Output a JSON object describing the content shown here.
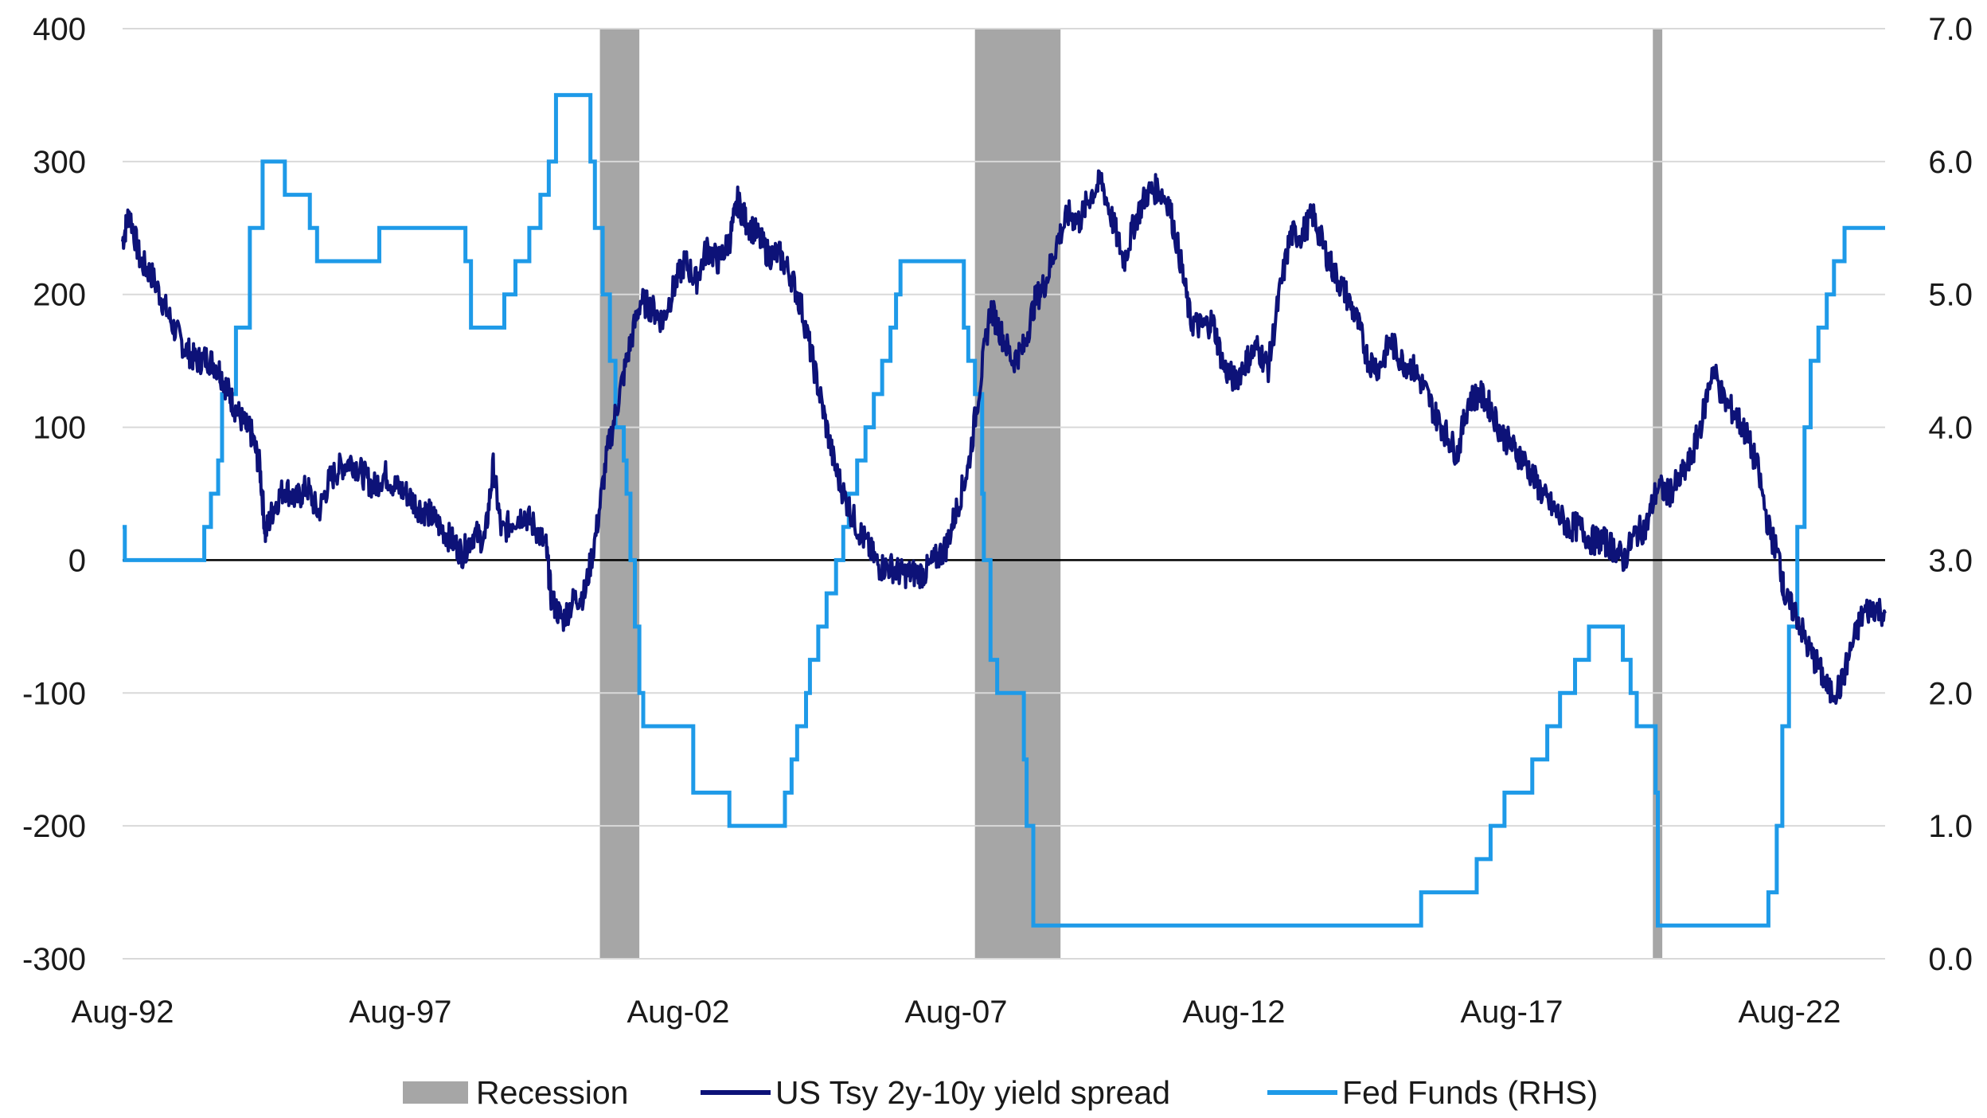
{
  "colors": {
    "recession": "#a6a6a6",
    "spread": "#0d1278",
    "fedfunds": "#1e9ae8",
    "grid": "#d9d9d9",
    "zero_line": "#000000"
  },
  "legend": {
    "recession": "Recession",
    "spread": "US Tsy 2y-10y yield spread",
    "fedfunds": "Fed Funds (RHS)"
  },
  "chart_data": {
    "type": "line",
    "grid": "horizontal",
    "legend_position": "bottom",
    "x_range": [
      "1992-08",
      "2024-04"
    ],
    "x_tick_labels": [
      {
        "label": "Aug-92",
        "date": 1992.58
      },
      {
        "label": "Aug-97",
        "date": 1997.58
      },
      {
        "label": "Aug-02",
        "date": 2002.58
      },
      {
        "label": "Aug-07",
        "date": 2007.58
      },
      {
        "label": "Aug-12",
        "date": 2012.58
      },
      {
        "label": "Aug-17",
        "date": 2017.58
      },
      {
        "label": "Aug-22",
        "date": 2022.58
      }
    ],
    "y_left": {
      "range": [
        -300,
        400
      ],
      "ticks": [
        400,
        300,
        200,
        100,
        0,
        -100,
        -200,
        -300
      ],
      "tick_labels": [
        "400",
        "300",
        "200",
        "100",
        "0",
        "-100",
        "-200",
        "-300"
      ]
    },
    "y_right": {
      "range": [
        0.0,
        7.0
      ],
      "ticks": [
        7.0,
        6.0,
        5.0,
        4.0,
        3.0,
        2.0,
        1.0,
        0.0
      ],
      "tick_labels": [
        "7.0",
        "6.0",
        "5.0",
        "4.0",
        "3.0",
        "2.0",
        "1.0",
        "0.0"
      ]
    },
    "recessions": [
      {
        "start": 2001.17,
        "end": 2001.88
      },
      {
        "start": 2007.92,
        "end": 2009.46
      },
      {
        "start": 2020.12,
        "end": 2020.29
      }
    ],
    "series": [
      {
        "name": "US Tsy 2y-10y yield spread",
        "axis": "left",
        "points": [
          [
            1992.58,
            240
          ],
          [
            1992.7,
            262
          ],
          [
            1992.9,
            225
          ],
          [
            1993.1,
            215
          ],
          [
            1993.3,
            195
          ],
          [
            1993.5,
            175
          ],
          [
            1993.7,
            160
          ],
          [
            1993.9,
            150
          ],
          [
            1994.1,
            152
          ],
          [
            1994.3,
            145
          ],
          [
            1994.45,
            130
          ],
          [
            1994.6,
            115
          ],
          [
            1994.8,
            100
          ],
          [
            1994.9,
            95
          ],
          [
            1995.05,
            70
          ],
          [
            1995.15,
            20
          ],
          [
            1995.3,
            40
          ],
          [
            1995.5,
            55
          ],
          [
            1995.7,
            45
          ],
          [
            1995.9,
            55
          ],
          [
            1996.1,
            35
          ],
          [
            1996.3,
            60
          ],
          [
            1996.5,
            70
          ],
          [
            1996.7,
            75
          ],
          [
            1996.9,
            65
          ],
          [
            1997.1,
            55
          ],
          [
            1997.3,
            65
          ],
          [
            1997.5,
            55
          ],
          [
            1997.7,
            50
          ],
          [
            1997.9,
            40
          ],
          [
            1998.1,
            35
          ],
          [
            1998.3,
            25
          ],
          [
            1998.5,
            15
          ],
          [
            1998.7,
            5
          ],
          [
            1998.9,
            20
          ],
          [
            1999.1,
            15
          ],
          [
            1999.25,
            70
          ],
          [
            1999.4,
            20
          ],
          [
            1999.6,
            30
          ],
          [
            1999.8,
            35
          ],
          [
            2000.0,
            25
          ],
          [
            2000.2,
            10
          ],
          [
            2000.3,
            -30
          ],
          [
            2000.5,
            -45
          ],
          [
            2000.7,
            -30
          ],
          [
            2000.9,
            -25
          ],
          [
            2001.1,
            20
          ],
          [
            2001.3,
            80
          ],
          [
            2001.5,
            120
          ],
          [
            2001.7,
            160
          ],
          [
            2001.9,
            195
          ],
          [
            2002.1,
            190
          ],
          [
            2002.3,
            180
          ],
          [
            2002.5,
            205
          ],
          [
            2002.7,
            225
          ],
          [
            2002.9,
            210
          ],
          [
            2003.1,
            235
          ],
          [
            2003.3,
            225
          ],
          [
            2003.5,
            240
          ],
          [
            2003.65,
            270
          ],
          [
            2003.8,
            255
          ],
          [
            2004.0,
            245
          ],
          [
            2004.2,
            230
          ],
          [
            2004.4,
            230
          ],
          [
            2004.6,
            215
          ],
          [
            2004.8,
            190
          ],
          [
            2005.0,
            150
          ],
          [
            2005.2,
            110
          ],
          [
            2005.4,
            70
          ],
          [
            2005.6,
            45
          ],
          [
            2005.8,
            25
          ],
          [
            2006.0,
            10
          ],
          [
            2006.2,
            -5
          ],
          [
            2006.4,
            -5
          ],
          [
            2006.6,
            -10
          ],
          [
            2006.8,
            -10
          ],
          [
            2007.0,
            -10
          ],
          [
            2007.2,
            0
          ],
          [
            2007.4,
            10
          ],
          [
            2007.6,
            40
          ],
          [
            2007.8,
            70
          ],
          [
            2008.0,
            130
          ],
          [
            2008.2,
            190
          ],
          [
            2008.4,
            170
          ],
          [
            2008.6,
            150
          ],
          [
            2008.8,
            160
          ],
          [
            2009.0,
            195
          ],
          [
            2009.2,
            210
          ],
          [
            2009.4,
            240
          ],
          [
            2009.6,
            260
          ],
          [
            2009.8,
            255
          ],
          [
            2010.0,
            275
          ],
          [
            2010.2,
            285
          ],
          [
            2010.4,
            255
          ],
          [
            2010.6,
            225
          ],
          [
            2010.8,
            255
          ],
          [
            2011.0,
            275
          ],
          [
            2011.2,
            280
          ],
          [
            2011.4,
            270
          ],
          [
            2011.6,
            230
          ],
          [
            2011.8,
            180
          ],
          [
            2012.0,
            175
          ],
          [
            2012.2,
            180
          ],
          [
            2012.4,
            145
          ],
          [
            2012.6,
            135
          ],
          [
            2012.8,
            150
          ],
          [
            2013.0,
            160
          ],
          [
            2013.2,
            145
          ],
          [
            2013.4,
            200
          ],
          [
            2013.6,
            245
          ],
          [
            2013.8,
            245
          ],
          [
            2014.0,
            260
          ],
          [
            2014.2,
            235
          ],
          [
            2014.4,
            215
          ],
          [
            2014.6,
            200
          ],
          [
            2014.8,
            180
          ],
          [
            2015.0,
            150
          ],
          [
            2015.2,
            145
          ],
          [
            2015.4,
            165
          ],
          [
            2015.6,
            150
          ],
          [
            2015.8,
            145
          ],
          [
            2016.0,
            130
          ],
          [
            2016.2,
            110
          ],
          [
            2016.4,
            95
          ],
          [
            2016.6,
            80
          ],
          [
            2016.8,
            120
          ],
          [
            2017.0,
            125
          ],
          [
            2017.2,
            115
          ],
          [
            2017.4,
            95
          ],
          [
            2017.6,
            85
          ],
          [
            2017.8,
            75
          ],
          [
            2018.0,
            60
          ],
          [
            2018.2,
            45
          ],
          [
            2018.4,
            35
          ],
          [
            2018.6,
            25
          ],
          [
            2018.8,
            25
          ],
          [
            2019.0,
            15
          ],
          [
            2019.2,
            15
          ],
          [
            2019.4,
            10
          ],
          [
            2019.6,
            0
          ],
          [
            2019.8,
            20
          ],
          [
            2020.0,
            25
          ],
          [
            2020.2,
            55
          ],
          [
            2020.4,
            50
          ],
          [
            2020.6,
            60
          ],
          [
            2020.8,
            75
          ],
          [
            2021.0,
            105
          ],
          [
            2021.2,
            145
          ],
          [
            2021.4,
            120
          ],
          [
            2021.6,
            110
          ],
          [
            2021.8,
            95
          ],
          [
            2022.0,
            70
          ],
          [
            2022.2,
            25
          ],
          [
            2022.4,
            0
          ],
          [
            2022.5,
            -30
          ],
          [
            2022.7,
            -40
          ],
          [
            2022.9,
            -65
          ],
          [
            2023.1,
            -80
          ],
          [
            2023.3,
            -100
          ],
          [
            2023.5,
            -95
          ],
          [
            2023.7,
            -65
          ],
          [
            2023.9,
            -40
          ],
          [
            2024.1,
            -35
          ],
          [
            2024.3,
            -40
          ]
        ]
      },
      {
        "name": "Fed Funds (RHS)",
        "axis": "right",
        "steps": [
          [
            1992.58,
            3.25
          ],
          [
            1992.62,
            3.0
          ],
          [
            1994.05,
            3.25
          ],
          [
            1994.17,
            3.5
          ],
          [
            1994.3,
            3.75
          ],
          [
            1994.37,
            4.25
          ],
          [
            1994.62,
            4.75
          ],
          [
            1994.87,
            5.5
          ],
          [
            1995.1,
            6.0
          ],
          [
            1995.5,
            5.75
          ],
          [
            1995.95,
            5.5
          ],
          [
            1996.08,
            5.25
          ],
          [
            1997.2,
            5.5
          ],
          [
            1998.75,
            5.25
          ],
          [
            1998.85,
            4.75
          ],
          [
            1999.45,
            5.0
          ],
          [
            1999.65,
            5.25
          ],
          [
            1999.9,
            5.5
          ],
          [
            2000.1,
            5.75
          ],
          [
            2000.25,
            6.0
          ],
          [
            2000.38,
            6.5
          ],
          [
            2001.0,
            6.0
          ],
          [
            2001.08,
            5.5
          ],
          [
            2001.22,
            5.0
          ],
          [
            2001.35,
            4.5
          ],
          [
            2001.45,
            4.0
          ],
          [
            2001.6,
            3.75
          ],
          [
            2001.65,
            3.5
          ],
          [
            2001.72,
            3.0
          ],
          [
            2001.8,
            2.5
          ],
          [
            2001.88,
            2.0
          ],
          [
            2001.95,
            1.75
          ],
          [
            2002.85,
            1.25
          ],
          [
            2003.5,
            1.0
          ],
          [
            2004.5,
            1.25
          ],
          [
            2004.62,
            1.5
          ],
          [
            2004.72,
            1.75
          ],
          [
            2004.88,
            2.0
          ],
          [
            2004.95,
            2.25
          ],
          [
            2005.1,
            2.5
          ],
          [
            2005.25,
            2.75
          ],
          [
            2005.42,
            3.0
          ],
          [
            2005.55,
            3.25
          ],
          [
            2005.65,
            3.5
          ],
          [
            2005.8,
            3.75
          ],
          [
            2005.95,
            4.0
          ],
          [
            2006.1,
            4.25
          ],
          [
            2006.25,
            4.5
          ],
          [
            2006.4,
            4.75
          ],
          [
            2006.5,
            5.0
          ],
          [
            2006.58,
            5.25
          ],
          [
            2007.72,
            4.75
          ],
          [
            2007.8,
            4.5
          ],
          [
            2007.92,
            4.25
          ],
          [
            2008.05,
            3.5
          ],
          [
            2008.08,
            3.0
          ],
          [
            2008.2,
            2.25
          ],
          [
            2008.32,
            2.0
          ],
          [
            2008.8,
            1.5
          ],
          [
            2008.85,
            1.0
          ],
          [
            2008.97,
            0.25
          ],
          [
            2015.95,
            0.5
          ],
          [
            2016.95,
            0.75
          ],
          [
            2017.2,
            1.0
          ],
          [
            2017.45,
            1.25
          ],
          [
            2017.95,
            1.5
          ],
          [
            2018.22,
            1.75
          ],
          [
            2018.45,
            2.0
          ],
          [
            2018.72,
            2.25
          ],
          [
            2018.97,
            2.5
          ],
          [
            2019.58,
            2.25
          ],
          [
            2019.72,
            2.0
          ],
          [
            2019.83,
            1.75
          ],
          [
            2020.17,
            1.25
          ],
          [
            2020.21,
            0.25
          ],
          [
            2022.2,
            0.5
          ],
          [
            2022.35,
            1.0
          ],
          [
            2022.45,
            1.75
          ],
          [
            2022.57,
            2.5
          ],
          [
            2022.72,
            3.25
          ],
          [
            2022.85,
            4.0
          ],
          [
            2022.96,
            4.5
          ],
          [
            2023.1,
            4.75
          ],
          [
            2023.25,
            5.0
          ],
          [
            2023.38,
            5.25
          ],
          [
            2023.57,
            5.5
          ],
          [
            2024.3,
            5.5
          ]
        ]
      }
    ]
  }
}
